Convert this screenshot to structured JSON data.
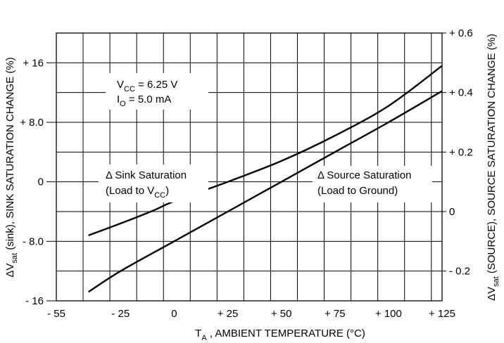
{
  "chart_data": {
    "type": "line",
    "x_ticks": [
      "- 55",
      "- 25",
      "0",
      "+ 25",
      "+ 50",
      "+ 75",
      "+ 100",
      "+ 125"
    ],
    "x_tick_values": [
      -55,
      -25,
      0,
      25,
      50,
      75,
      100,
      125
    ],
    "xlim": [
      -55,
      125
    ],
    "x_grid_step": 12.5,
    "xlabel": {
      "main": "T",
      "sub": "A",
      "rest": " , AMBIENT TEMPERATURE (°C)"
    },
    "left_axis": {
      "label": {
        "pre": "ΔV",
        "sub": "sat",
        "rest": " (sink),  SINK SATURATION CHANGE (%)"
      },
      "ylim": [
        -16,
        20
      ],
      "ticks": [
        "- 16",
        "- 8.0",
        "0",
        "+ 8.0",
        "+ 16"
      ],
      "tick_values": [
        -16,
        -8,
        0,
        8,
        16
      ]
    },
    "right_axis": {
      "label": {
        "pre": "ΔV",
        "sub": "sat",
        "rest": " (SOURCE),  SOURCE SATURATION CHANGE (%)"
      },
      "ylim": [
        -0.3,
        0.6
      ],
      "ticks": [
        "- 0.2",
        "0",
        "+ 0.2",
        "+ 0.4",
        "+ 0.6"
      ],
      "tick_values": [
        -0.2,
        0,
        0.2,
        0.4,
        0.6
      ]
    },
    "grid": true,
    "series": [
      {
        "axis": "left",
        "points": [
          [
            -40,
            -7.2
          ],
          [
            -25,
            -5.6
          ],
          [
            -10,
            -3.9
          ],
          [
            0,
            -2.6
          ],
          [
            25,
            0.0
          ],
          [
            50,
            2.8
          ],
          [
            75,
            6.2
          ],
          [
            100,
            10.2
          ],
          [
            125,
            15.6
          ]
        ]
      },
      {
        "axis": "right",
        "points": [
          [
            -40,
            -0.27
          ],
          [
            -25,
            -0.2
          ],
          [
            0,
            -0.1
          ],
          [
            25,
            0.0
          ],
          [
            50,
            0.1
          ],
          [
            75,
            0.2
          ],
          [
            100,
            0.3
          ],
          [
            125,
            0.405
          ]
        ]
      }
    ],
    "annotations": {
      "conditions": {
        "vcc": {
          "pre": "V",
          "sub": "CC",
          "rest": " = 6.25 V"
        },
        "io": {
          "pre": "I",
          "sub": "O",
          "rest": " = 5.0 mA"
        }
      },
      "sink": {
        "line1": "Δ Sink Saturation",
        "line2_pre": "(Load to V",
        "line2_sub": "CC",
        "line2_post": ")"
      },
      "source": {
        "line1": "Δ Source Saturation",
        "line2": "(Load to Ground)"
      }
    }
  }
}
